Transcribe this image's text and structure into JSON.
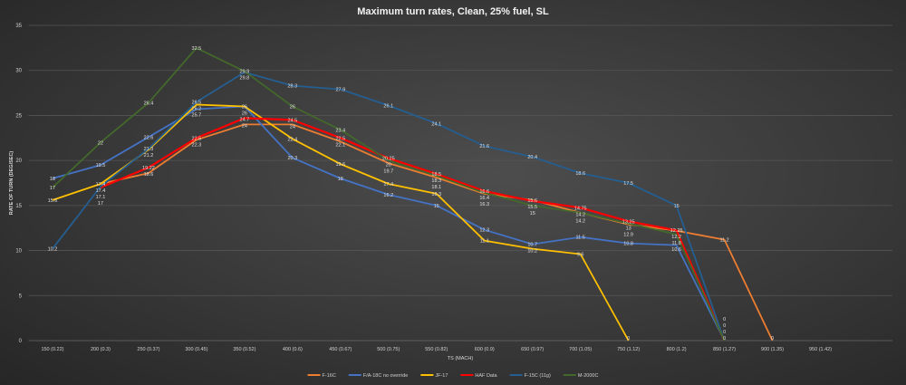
{
  "chart_data": {
    "type": "line",
    "title": "Maximum  turn  rates,  Clean,  25%  fuel,  SL",
    "xlabel": "TS (MACH)",
    "ylabel": "RATE OF TURN (DEG/SEC)",
    "ylim": [
      0,
      35
    ],
    "yticks": [
      0,
      5,
      10,
      15,
      20,
      25,
      30,
      35
    ],
    "grid": true,
    "legend": "bottom",
    "categories": [
      "150 (0.22)",
      "200 (0.3)",
      "250 (0.37)",
      "300 (0.45)",
      "350 (0.52)",
      "400 (0.6)",
      "450 (0.67)",
      "500 (0.75)",
      "550 (0.82)",
      "600 (0.9)",
      "650 (0.97)",
      "700 (1.05)",
      "750 (1.12)",
      "800 (1.2)",
      "850 (1.27)",
      "900 (1.35)",
      "950 (1.42)"
    ],
    "series": [
      {
        "name": "F-16C",
        "color": "#ed7d31",
        "values": [
          null,
          17.4,
          18.6,
          22.3,
          24,
          24,
          22.1,
          19.7,
          18.1,
          16.3,
          15.6,
          14.2,
          12.9,
          12.2,
          11.2,
          0,
          null
        ]
      },
      {
        "name": "F/A-18C no override",
        "color": "#4472c4",
        "values": [
          18,
          19.5,
          22.6,
          25.7,
          26,
          20.3,
          18,
          16.2,
          15,
          12.3,
          10.7,
          11.5,
          10.8,
          10.6,
          0,
          null,
          null
        ]
      },
      {
        "name": "JF-17",
        "color": "#ffc000",
        "values": [
          15.6,
          17.4,
          21.2,
          26.2,
          26,
          22.4,
          19.6,
          17.4,
          16.3,
          11.1,
          10.2,
          9.6,
          0,
          null,
          null,
          null,
          null
        ]
      },
      {
        "name": "HAF Data",
        "color": "#ff0000",
        "values": [
          null,
          17,
          19.22,
          22.5,
          24.7,
          24.5,
          22.5,
          20.25,
          18.5,
          16.6,
          15.5,
          14.75,
          13.25,
          12.25,
          0,
          null,
          null
        ]
      },
      {
        "name": "F-15C (11g)",
        "color": "#255e91",
        "values": [
          10.2,
          17.1,
          21.3,
          26.5,
          29.8,
          28.3,
          27.9,
          26.1,
          24.1,
          21.6,
          20.4,
          18.6,
          17.5,
          15,
          0,
          null,
          null
        ]
      },
      {
        "name": "M-2000C",
        "color": "#43682b",
        "values": [
          17,
          22,
          26.4,
          32.5,
          29.9,
          26,
          23.4,
          20,
          18.3,
          16.4,
          15,
          14.2,
          13,
          11.8,
          0,
          null,
          null
        ]
      }
    ]
  }
}
